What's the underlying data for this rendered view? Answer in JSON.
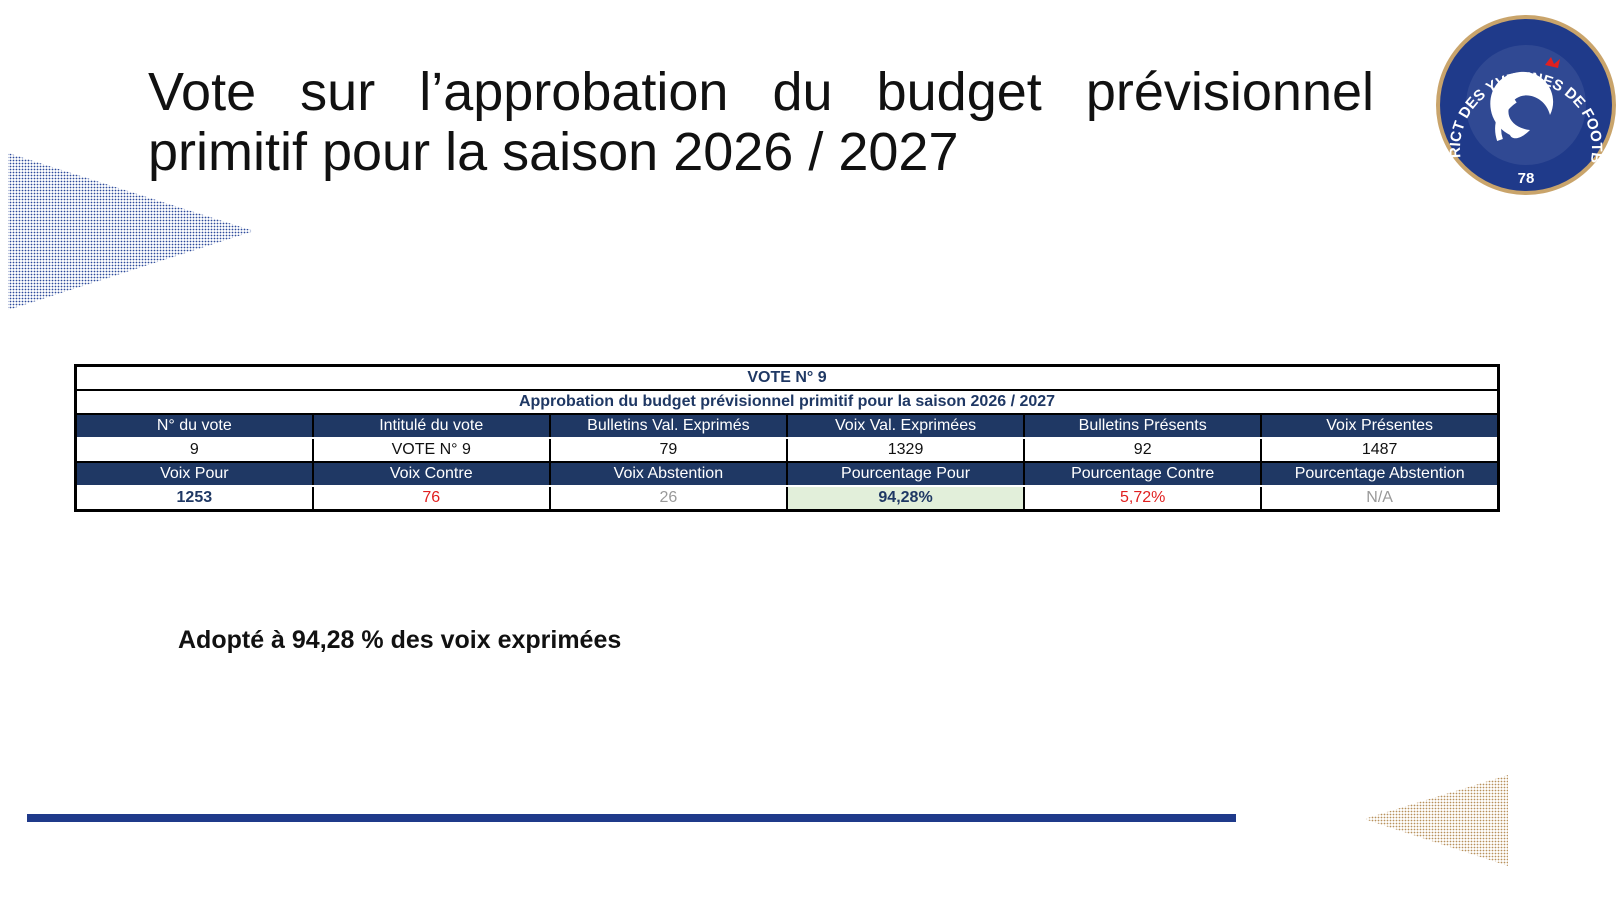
{
  "title_lines": [
    "Vote sur l’approbation du budget prévisionnel",
    "primitif pour la saison 2026 / 2027"
  ],
  "logo": {
    "ring_text": "DISTRICT DES YVELINES DE FOOTBALL",
    "number": "78"
  },
  "table": {
    "title": "VOTE N° 9",
    "subtitle": "Approbation du budget prévisionnel primitif pour la saison 2026 / 2027",
    "rows": [
      [
        "N° du vote",
        "Intitulé du vote",
        "Bulletins Val. Exprimés",
        "Voix Val. Exprimées",
        "Bulletins Présents",
        "Voix Présentes"
      ],
      [
        "9",
        "VOTE N° 9",
        "79",
        "1329",
        "92",
        "1487"
      ],
      [
        "Voix Pour",
        "Voix Contre",
        "Voix Abstention",
        "Pourcentage Pour",
        "Pourcentage Contre",
        "Pourcentage Abstention"
      ],
      [
        "1253",
        "76",
        "26",
        "94,28%",
        "5,72%",
        "N/A"
      ]
    ]
  },
  "note": "Adopté à 94,28 % des voix exprimées"
}
